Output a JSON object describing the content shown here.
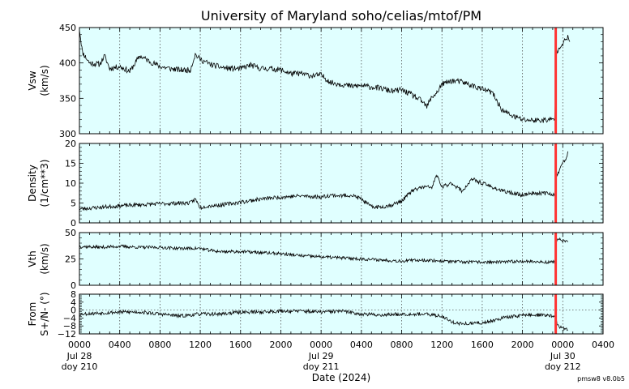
{
  "colors": {
    "panel_bg": "#e0ffff",
    "line": "#000000",
    "marker": "#ff3333",
    "grid": "#555555"
  },
  "chart_data": {
    "type": "line",
    "title": "University of Maryland  soho/celias/mtof/PM",
    "xlabel": "Date (2024)",
    "version": "pmsw8 v8.0b5",
    "x_range_hours": [
      0,
      52
    ],
    "x_ticks": [
      {
        "hour": 0,
        "label": "0000",
        "sub": [
          "Jul 28",
          "doy 210"
        ]
      },
      {
        "hour": 4,
        "label": "0400",
        "sub": []
      },
      {
        "hour": 8,
        "label": "0800",
        "sub": []
      },
      {
        "hour": 12,
        "label": "1200",
        "sub": []
      },
      {
        "hour": 16,
        "label": "1600",
        "sub": []
      },
      {
        "hour": 20,
        "label": "2000",
        "sub": []
      },
      {
        "hour": 24,
        "label": "0000",
        "sub": [
          "Jul 29",
          "doy 211"
        ]
      },
      {
        "hour": 28,
        "label": "0400",
        "sub": []
      },
      {
        "hour": 32,
        "label": "0800",
        "sub": []
      },
      {
        "hour": 36,
        "label": "1200",
        "sub": []
      },
      {
        "hour": 40,
        "label": "1600",
        "sub": []
      },
      {
        "hour": 44,
        "label": "2000",
        "sub": []
      },
      {
        "hour": 48,
        "label": "0000",
        "sub": [
          "Jul 30",
          "doy 212"
        ]
      },
      {
        "hour": 52,
        "label": "0400",
        "sub": []
      }
    ],
    "marker_hour": 47.3,
    "panels": [
      {
        "id": "vsw",
        "ylabel": [
          "Vsw",
          "(km/s)"
        ],
        "ylim": [
          300,
          450
        ],
        "ytick_values": [
          300,
          350,
          400,
          450
        ],
        "ytick_labels": [
          "300",
          "350",
          "400",
          "450"
        ],
        "noise": 4,
        "seed": 11,
        "gap_after": 47.2,
        "points": [
          [
            0,
            448
          ],
          [
            0.3,
            415
          ],
          [
            1,
            400
          ],
          [
            2,
            398
          ],
          [
            2.5,
            410
          ],
          [
            3,
            392
          ],
          [
            4,
            395
          ],
          [
            5,
            388
          ],
          [
            6,
            410
          ],
          [
            7,
            402
          ],
          [
            8,
            395
          ],
          [
            9,
            392
          ],
          [
            10,
            390
          ],
          [
            11,
            390
          ],
          [
            11.5,
            412
          ],
          [
            12,
            405
          ],
          [
            13,
            398
          ],
          [
            14,
            394
          ],
          [
            15,
            392
          ],
          [
            16,
            392
          ],
          [
            17,
            397
          ],
          [
            18,
            392
          ],
          [
            19,
            392
          ],
          [
            20,
            390
          ],
          [
            21,
            385
          ],
          [
            22,
            385
          ],
          [
            23,
            382
          ],
          [
            24,
            383
          ],
          [
            25,
            372
          ],
          [
            26,
            370
          ],
          [
            27,
            367
          ],
          [
            28,
            368
          ],
          [
            29,
            366
          ],
          [
            30,
            364
          ],
          [
            31,
            360
          ],
          [
            32,
            362
          ],
          [
            33,
            355
          ],
          [
            34,
            346
          ],
          [
            34.5,
            338
          ],
          [
            35,
            352
          ],
          [
            35.5,
            358
          ],
          [
            36,
            370
          ],
          [
            37,
            375
          ],
          [
            38,
            373
          ],
          [
            39,
            368
          ],
          [
            40,
            363
          ],
          [
            41,
            358
          ],
          [
            41.5,
            345
          ],
          [
            42,
            333
          ],
          [
            43,
            325
          ],
          [
            44,
            320
          ],
          [
            45,
            319
          ],
          [
            46,
            319
          ],
          [
            47.2,
            320
          ],
          [
            47.4,
            415
          ],
          [
            47.6,
            422
          ],
          [
            48,
            428
          ],
          [
            48.3,
            432
          ],
          [
            48.5,
            436
          ],
          [
            48.7,
            430
          ]
        ]
      },
      {
        "id": "density",
        "ylabel": [
          "Density",
          "(1/cm**3)"
        ],
        "ylim": [
          0,
          20
        ],
        "ytick_values": [
          0,
          5,
          10,
          15,
          20
        ],
        "ytick_labels": [
          "0",
          "5",
          "10",
          "15",
          "20"
        ],
        "noise": 0.5,
        "seed": 23,
        "gap_after": 47.2,
        "points": [
          [
            0,
            3.5
          ],
          [
            4,
            4.3
          ],
          [
            8,
            4.8
          ],
          [
            10,
            5
          ],
          [
            11,
            5
          ],
          [
            11.5,
            6
          ],
          [
            12,
            3.8
          ],
          [
            12.5,
            4.2
          ],
          [
            14,
            4.5
          ],
          [
            16,
            5.2
          ],
          [
            18,
            6
          ],
          [
            20,
            6.5
          ],
          [
            22,
            6.8
          ],
          [
            24,
            6.5
          ],
          [
            25,
            7
          ],
          [
            26,
            6.8
          ],
          [
            27,
            7
          ],
          [
            28,
            6
          ],
          [
            29,
            4
          ],
          [
            30,
            4
          ],
          [
            31,
            4.5
          ],
          [
            32,
            5.5
          ],
          [
            33,
            8
          ],
          [
            34,
            9
          ],
          [
            35,
            9
          ],
          [
            35.5,
            12
          ],
          [
            36,
            9
          ],
          [
            37,
            10
          ],
          [
            38,
            8
          ],
          [
            39,
            11
          ],
          [
            40,
            10
          ],
          [
            41,
            9
          ],
          [
            42,
            8
          ],
          [
            43,
            7.5
          ],
          [
            44,
            7
          ],
          [
            45,
            7.5
          ],
          [
            46,
            7.5
          ],
          [
            47.2,
            7.2
          ],
          [
            47.4,
            12
          ],
          [
            47.6,
            13
          ],
          [
            47.8,
            14
          ],
          [
            48,
            15
          ],
          [
            48.3,
            16
          ],
          [
            48.5,
            18
          ]
        ]
      },
      {
        "id": "vth",
        "ylabel": [
          "Vth",
          "(km/s)"
        ],
        "ylim": [
          0,
          50
        ],
        "ytick_values": [
          0,
          25,
          50
        ],
        "ytick_labels": [
          "0",
          "25",
          "50"
        ],
        "noise": 1.5,
        "seed": 37,
        "gap_after": 47.2,
        "points": [
          [
            0,
            37
          ],
          [
            2,
            36
          ],
          [
            4,
            37
          ],
          [
            6,
            36
          ],
          [
            8,
            36
          ],
          [
            10,
            35
          ],
          [
            12,
            35
          ],
          [
            13,
            33
          ],
          [
            14,
            32
          ],
          [
            16,
            32
          ],
          [
            18,
            31
          ],
          [
            20,
            30
          ],
          [
            22,
            28
          ],
          [
            24,
            27
          ],
          [
            26,
            26
          ],
          [
            28,
            25
          ],
          [
            30,
            24
          ],
          [
            32,
            23
          ],
          [
            34,
            24
          ],
          [
            36,
            23
          ],
          [
            38,
            22
          ],
          [
            40,
            22
          ],
          [
            42,
            22
          ],
          [
            44,
            23
          ],
          [
            46,
            22
          ],
          [
            47.2,
            22
          ],
          [
            47.4,
            43
          ],
          [
            47.6,
            44
          ],
          [
            48,
            42
          ],
          [
            48.5,
            41
          ]
        ]
      },
      {
        "id": "from",
        "ylabel": [
          "From",
          "S+/N- (°)"
        ],
        "ylim": [
          -12,
          8
        ],
        "ytick_values": [
          -12,
          -8,
          -4,
          0,
          4,
          8
        ],
        "ytick_labels": [
          "−12",
          "−8",
          "−4",
          "0",
          "4",
          "8"
        ],
        "zero_line": true,
        "noise": 0.9,
        "seed": 53,
        "gap_after": 47.2,
        "points": [
          [
            0,
            -2
          ],
          [
            2,
            -1.5
          ],
          [
            4,
            -1
          ],
          [
            6,
            -1
          ],
          [
            8,
            -2
          ],
          [
            10,
            -3
          ],
          [
            12,
            -2
          ],
          [
            14,
            -2
          ],
          [
            16,
            -1
          ],
          [
            18,
            -1
          ],
          [
            20,
            -0.5
          ],
          [
            22,
            -0.5
          ],
          [
            24,
            -1
          ],
          [
            26,
            -0.5
          ],
          [
            28,
            -2
          ],
          [
            30,
            -2.5
          ],
          [
            32,
            -2
          ],
          [
            34,
            -2
          ],
          [
            36,
            -3
          ],
          [
            37,
            -6
          ],
          [
            38,
            -7
          ],
          [
            40,
            -6.5
          ],
          [
            42,
            -4
          ],
          [
            44,
            -2.5
          ],
          [
            46,
            -2.5
          ],
          [
            47.2,
            -3
          ],
          [
            47.5,
            -8
          ],
          [
            48,
            -9
          ],
          [
            48.5,
            -10
          ]
        ]
      }
    ]
  }
}
